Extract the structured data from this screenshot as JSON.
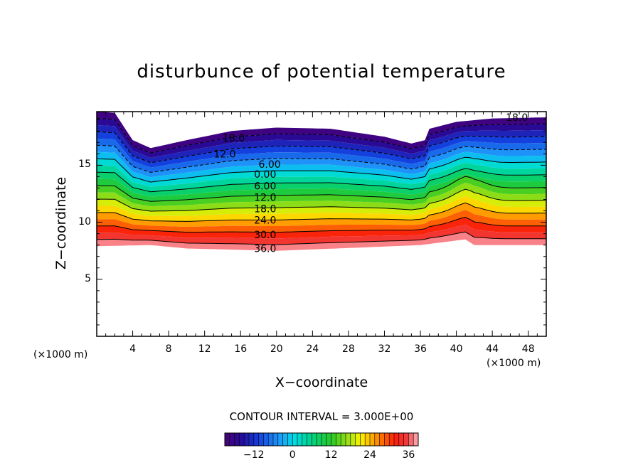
{
  "chart_data": {
    "type": "heatmap",
    "title": "disturbunce of potential temperature",
    "xlabel": "X−coordinate",
    "ylabel": "Z−coordinate",
    "x_unit_label": "(×1000 m)",
    "z_unit_label": "(×1000 m)",
    "xlim": [
      0,
      50
    ],
    "ylim": [
      0,
      19.7
    ],
    "x_ticks": [
      4,
      8,
      12,
      16,
      20,
      24,
      28,
      32,
      36,
      40,
      44,
      48
    ],
    "x_tick_labels": [
      "4",
      "8",
      "12",
      "16",
      "20",
      "24",
      "28",
      "32",
      "36",
      "40",
      "44",
      "48"
    ],
    "y_ticks": [
      5,
      10,
      15
    ],
    "y_tick_labels": [
      "5",
      "10",
      "15"
    ],
    "contour_interval_text": "CONTOUR INTERVAL = 3.000E+00",
    "contour_interval": 3.0,
    "value_range": [
      -21,
      39
    ],
    "contour_labels": [
      {
        "text": "18.0",
        "x": 45.5,
        "z": 19.2
      },
      {
        "text": "18.0",
        "x": 14.0,
        "z": 17.4
      },
      {
        "text": "12.0",
        "x": 13.0,
        "z": 16.0
      },
      {
        "text": "6.00",
        "x": 18.0,
        "z": 15.1
      },
      {
        "text": "0.00",
        "x": 17.5,
        "z": 14.2
      },
      {
        "text": "6.00",
        "x": 17.5,
        "z": 13.2
      },
      {
        "text": "12.0",
        "x": 17.5,
        "z": 12.2
      },
      {
        "text": "18.0",
        "x": 17.5,
        "z": 11.2
      },
      {
        "text": "24.0",
        "x": 17.5,
        "z": 10.2
      },
      {
        "text": "30.0",
        "x": 17.5,
        "z": 8.9
      },
      {
        "text": "36.0",
        "x": 17.5,
        "z": 7.7
      }
    ],
    "colorbar": {
      "tick_values": [
        -12,
        0,
        12,
        24,
        36
      ],
      "tick_labels": [
        "−12",
        "0",
        "12",
        "24",
        "36"
      ],
      "range": [
        -21,
        39
      ]
    }
  }
}
